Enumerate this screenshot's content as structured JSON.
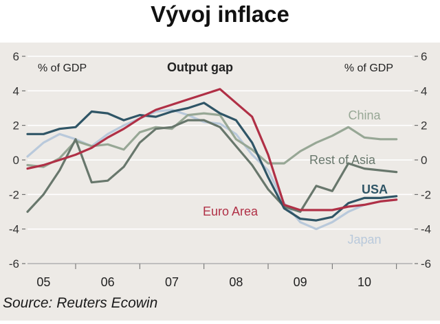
{
  "title": "Vývoj inflace",
  "source": "Source: Reuters Ecowin",
  "chart_data": {
    "type": "line",
    "title": "Output gap",
    "ylabel_left": "% of GDP",
    "ylabel_right": "% of GDP",
    "ylim": [
      -6,
      6
    ],
    "yticks": [
      -6,
      -4,
      -2,
      0,
      2,
      4,
      6
    ],
    "ytick_labels": [
      "-6",
      "-4",
      "-2",
      "0",
      "2",
      "4",
      "6"
    ],
    "xlim": [
      2004.75,
      2010.75
    ],
    "xticks": [
      2005,
      2006,
      2007,
      2008,
      2009,
      2010
    ],
    "xtick_labels": [
      "05",
      "06",
      "07",
      "08",
      "09",
      "10"
    ],
    "grid": true,
    "colors": {
      "Euro Area": "#b03046",
      "USA": "#2f5566",
      "Japan": "#b9c9db",
      "China": "#97a795",
      "Rest of Asia": "#68776c"
    },
    "series": [
      {
        "name": "Euro Area",
        "x": [
          2004.75,
          2005.0,
          2005.25,
          2005.5,
          2005.75,
          2006.0,
          2006.25,
          2006.5,
          2006.75,
          2007.0,
          2007.25,
          2007.5,
          2007.75,
          2008.0,
          2008.25,
          2008.5,
          2008.75,
          2009.0,
          2009.25,
          2009.5,
          2009.75,
          2010.0,
          2010.25,
          2010.5
        ],
        "y": [
          -0.5,
          -0.3,
          0.0,
          0.3,
          0.7,
          1.3,
          1.8,
          2.4,
          2.9,
          3.2,
          3.5,
          3.8,
          4.1,
          3.3,
          2.5,
          0.3,
          -2.6,
          -2.9,
          -2.9,
          -2.9,
          -2.7,
          -2.6,
          -2.4,
          -2.3
        ]
      },
      {
        "name": "USA",
        "x": [
          2004.75,
          2005.0,
          2005.25,
          2005.5,
          2005.75,
          2006.0,
          2006.25,
          2006.5,
          2006.75,
          2007.0,
          2007.25,
          2007.5,
          2007.75,
          2008.0,
          2008.25,
          2008.5,
          2008.75,
          2009.0,
          2009.25,
          2009.5,
          2009.75,
          2010.0,
          2010.25,
          2010.5
        ],
        "y": [
          1.5,
          1.5,
          1.8,
          1.9,
          2.8,
          2.7,
          2.3,
          2.6,
          2.5,
          2.8,
          3.0,
          3.3,
          2.7,
          2.3,
          1.0,
          -1.0,
          -2.8,
          -3.4,
          -3.5,
          -3.3,
          -2.5,
          -2.2,
          -2.2,
          -2.1
        ]
      },
      {
        "name": "Japan",
        "x": [
          2004.75,
          2005.0,
          2005.25,
          2005.5,
          2005.75,
          2006.0,
          2006.25,
          2006.5,
          2006.75,
          2007.0,
          2007.25,
          2007.5,
          2007.75,
          2008.0,
          2008.25,
          2008.5,
          2008.75,
          2009.0,
          2009.25,
          2009.5,
          2009.75,
          2010.0,
          2010.25,
          2010.5
        ],
        "y": [
          0.2,
          1.0,
          1.5,
          1.2,
          0.8,
          1.5,
          2.0,
          2.4,
          2.8,
          2.9,
          2.6,
          2.2,
          2.1,
          1.5,
          0.3,
          -0.6,
          -2.5,
          -3.6,
          -4.0,
          -3.6,
          -3.0,
          -2.6,
          -2.4,
          -2.3
        ]
      },
      {
        "name": "China",
        "x": [
          2004.75,
          2005.0,
          2005.25,
          2005.5,
          2005.75,
          2006.0,
          2006.25,
          2006.5,
          2006.75,
          2007.0,
          2007.25,
          2007.5,
          2007.75,
          2008.0,
          2008.25,
          2008.5,
          2008.75,
          2009.0,
          2009.25,
          2009.5,
          2009.75,
          2010.0,
          2010.25,
          2010.5
        ],
        "y": [
          -0.3,
          -0.4,
          0.1,
          1.1,
          0.8,
          0.9,
          0.6,
          1.6,
          1.9,
          1.8,
          2.6,
          2.7,
          2.6,
          1.2,
          0.6,
          -0.2,
          -0.2,
          0.5,
          1.0,
          1.4,
          1.9,
          1.3,
          1.2,
          1.2
        ]
      },
      {
        "name": "Rest of Asia",
        "x": [
          2004.75,
          2005.0,
          2005.25,
          2005.5,
          2005.75,
          2006.0,
          2006.25,
          2006.5,
          2006.75,
          2007.0,
          2007.25,
          2007.5,
          2007.75,
          2008.0,
          2008.25,
          2008.5,
          2008.75,
          2009.0,
          2009.25,
          2009.5,
          2009.75,
          2010.0,
          2010.25,
          2010.5
        ],
        "y": [
          -3.0,
          -2.0,
          -0.6,
          1.2,
          -1.3,
          -1.2,
          -0.4,
          1.0,
          1.8,
          1.9,
          2.3,
          2.3,
          1.9,
          0.8,
          -0.3,
          -1.7,
          -2.7,
          -3.0,
          -1.5,
          -1.8,
          -0.2,
          -0.5,
          -0.6,
          -0.7
        ]
      }
    ],
    "series_labels": {
      "China": "China",
      "Rest of Asia": "Rest of Asia",
      "USA": "USA",
      "Euro Area": "Euro Area",
      "Japan": "Japan"
    }
  }
}
